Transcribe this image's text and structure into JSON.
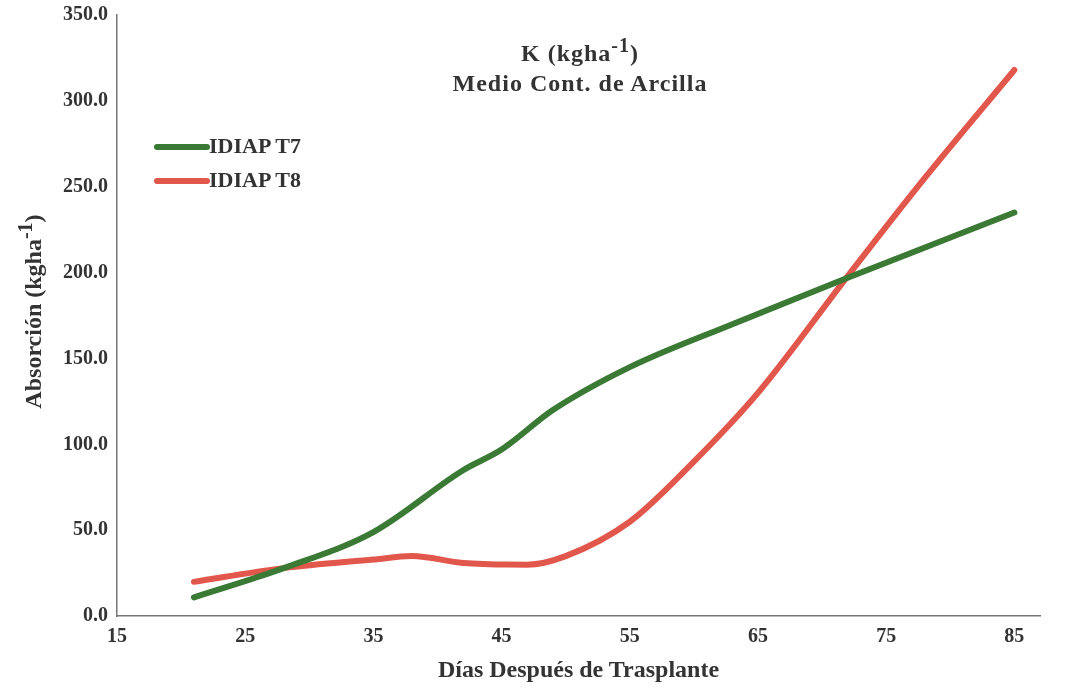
{
  "chart_data": {
    "type": "line",
    "title": "K (kgha$^{-1}$)",
    "subtitle": "Medio Cont. de Arcilla",
    "xlabel": "Días Después de Trasplante",
    "ylabel": "Absorción (kgha$^{-1}$)",
    "xlim": [
      15,
      87
    ],
    "xticks": [
      15,
      25,
      35,
      45,
      55,
      65,
      75,
      85
    ],
    "ylim": [
      0,
      350
    ],
    "yticks": [
      {
        "value": 0,
        "label": "0.0"
      },
      {
        "value": 50,
        "label": "50.0"
      },
      {
        "value": 100,
        "label": "100.0"
      },
      {
        "value": 150,
        "label": "150.0"
      },
      {
        "value": 200,
        "label": "200.0"
      },
      {
        "value": 250,
        "label": "250.0"
      },
      {
        "value": 300,
        "label": "300.0"
      },
      {
        "value": 350,
        "label": "350.0"
      }
    ],
    "grid": false,
    "legend": "top left",
    "marker": "none",
    "line_style": "solid",
    "series": [
      {
        "name": "IDIAP T7",
        "color": "#3a7a34",
        "x": [
          21,
          28,
          35,
          42,
          45,
          49,
          55,
          63,
          72,
          85
        ],
        "values": [
          11,
          28,
          49,
          85,
          97,
          120,
          145,
          170,
          197,
          235
        ]
      },
      {
        "name": "IDIAP T8",
        "color": "#e2574c",
        "x": [
          21,
          28,
          35,
          38,
          42,
          47,
          50,
          55,
          60,
          65,
          72,
          78,
          85
        ],
        "values": [
          20,
          28,
          33,
          35,
          31,
          30,
          35,
          55,
          90,
          130,
          198,
          255,
          318
        ]
      }
    ]
  }
}
